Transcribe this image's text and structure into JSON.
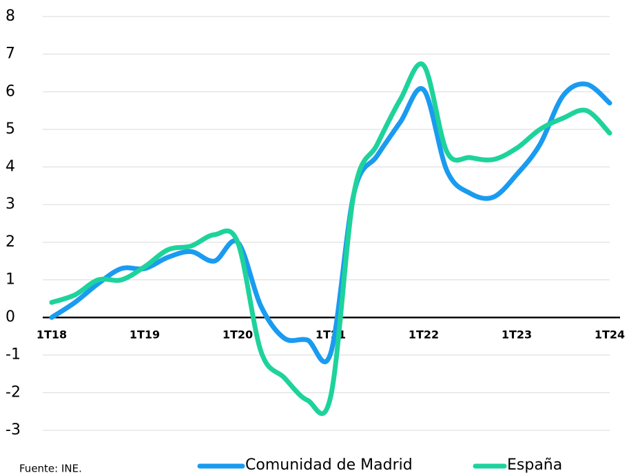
{
  "chart_data": {
    "type": "line",
    "categories": [
      "1T18",
      null,
      null,
      null,
      "1T19",
      null,
      null,
      null,
      "1T20",
      null,
      null,
      null,
      "1T21",
      null,
      null,
      null,
      "1T22",
      null,
      null,
      null,
      "1T23",
      null,
      null,
      null,
      "1T24"
    ],
    "series": [
      {
        "name": "Comunidad de Madrid",
        "color": "#1a9bf0",
        "values": [
          0.0,
          0.4,
          0.9,
          1.3,
          1.3,
          1.6,
          1.75,
          1.5,
          2.0,
          0.3,
          -0.55,
          -0.6,
          -0.95,
          3.3,
          4.3,
          5.2,
          6.05,
          3.9,
          3.3,
          3.2,
          3.8,
          4.6,
          5.9,
          6.2,
          5.7
        ]
      },
      {
        "name": "España",
        "color": "#1ed39b",
        "values": [
          0.4,
          0.6,
          1.0,
          1.0,
          1.35,
          1.8,
          1.9,
          2.2,
          2.0,
          -0.9,
          -1.6,
          -2.2,
          -2.1,
          3.3,
          4.6,
          5.8,
          6.7,
          4.4,
          4.25,
          4.2,
          4.5,
          5.0,
          5.3,
          5.5,
          4.9
        ]
      }
    ],
    "ylim": [
      -3,
      8
    ],
    "yticks": [
      -3,
      -2,
      -1,
      0,
      1,
      2,
      3,
      4,
      5,
      6,
      7,
      8
    ],
    "grid": true,
    "legend": "bottom",
    "note": "Fuente: INE."
  }
}
